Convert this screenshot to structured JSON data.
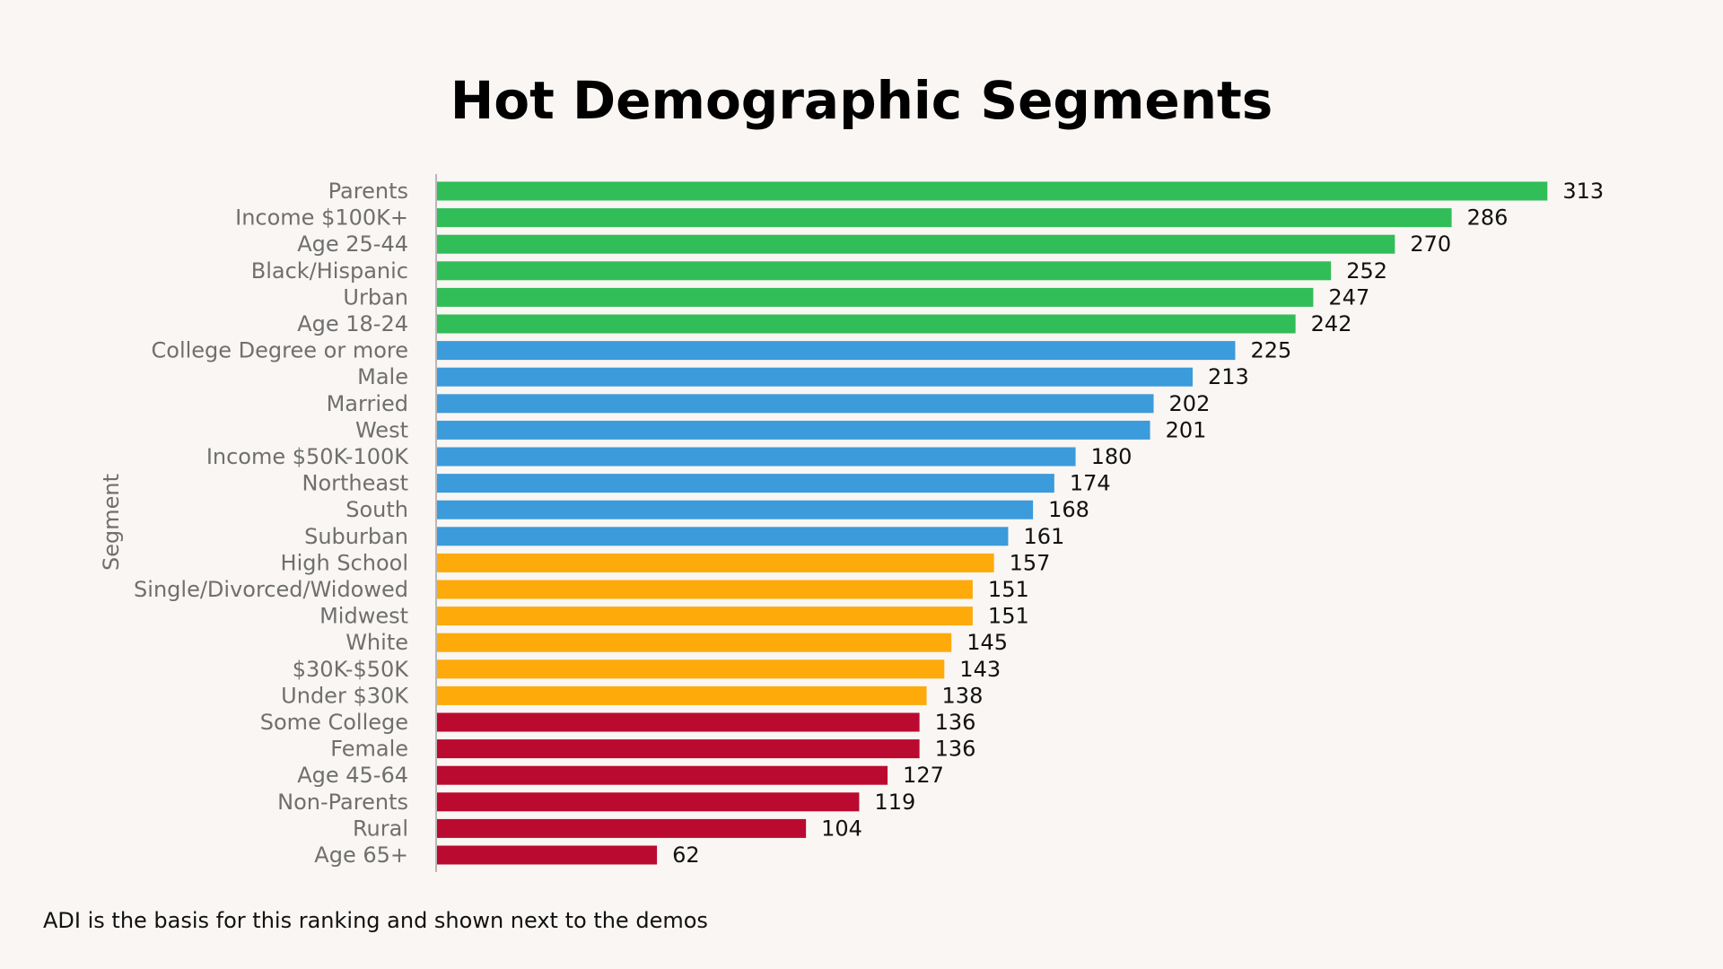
{
  "chart_data": {
    "type": "bar",
    "orientation": "horizontal",
    "title": "Hot Demographic Segments",
    "ylabel": "Segment",
    "xlabel": "",
    "xlim": [
      0,
      320
    ],
    "grid": false,
    "footnote": "ADI is the basis for this ranking and shown next to the demos",
    "colors": {
      "green": "#31bd57",
      "blue": "#3b9bdb",
      "orange": "#fdaa0a",
      "red": "#bb0a30"
    },
    "categories": [
      "Parents",
      "Income $100K+",
      "Age 25-44",
      "Black/Hispanic",
      "Urban",
      "Age 18-24",
      "College Degree or more",
      "Male",
      "Married",
      "West",
      "Income $50K-100K",
      "Northeast",
      "South",
      "Suburban",
      "High School",
      "Single/Divorced/Widowed",
      "Midwest",
      "White",
      "$30K-$50K",
      "Under $30K",
      "Some College",
      "Female",
      "Age 45-64",
      "Non-Parents",
      "Rural",
      "Age 65+"
    ],
    "values": [
      313,
      286,
      270,
      252,
      247,
      242,
      225,
      213,
      202,
      201,
      180,
      174,
      168,
      161,
      157,
      151,
      151,
      145,
      143,
      138,
      136,
      136,
      127,
      119,
      104,
      62
    ],
    "groups": [
      "green",
      "green",
      "green",
      "green",
      "green",
      "green",
      "blue",
      "blue",
      "blue",
      "blue",
      "blue",
      "blue",
      "blue",
      "blue",
      "orange",
      "orange",
      "orange",
      "orange",
      "orange",
      "orange",
      "red",
      "red",
      "red",
      "red",
      "red",
      "red"
    ]
  }
}
